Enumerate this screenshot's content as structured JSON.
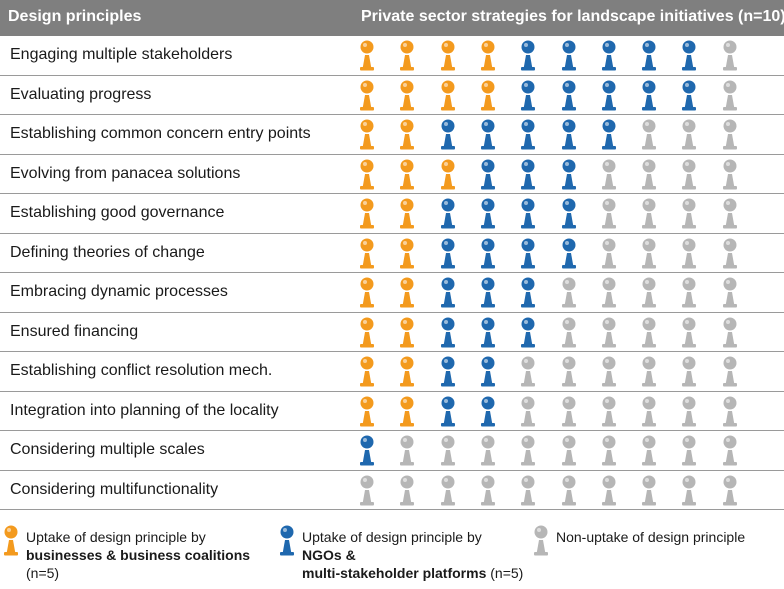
{
  "header": {
    "left": "Design principles",
    "right": "Private sector strategies for landscape initiatives (n=10)"
  },
  "colors": {
    "business": "#f39a1e",
    "ngo": "#1f68ae",
    "none": "#b6b6b6"
  },
  "chart_data": {
    "type": "table",
    "title": "Private sector strategies for landscape initiatives (n=10)",
    "row_header": "Design principles",
    "columns": 10,
    "legend": [
      {
        "key": "business",
        "line1": "Uptake of design principle by",
        "bold": "businesses & business coalitions",
        "note": "(n=5)"
      },
      {
        "key": "ngo",
        "line1": "Uptake of design principle by",
        "bold": "NGOs & multi-stakeholder platforms",
        "note": "(n=5)"
      },
      {
        "key": "none",
        "line1": "Non-uptake of design principle",
        "bold": "",
        "note": ""
      }
    ],
    "rows": [
      {
        "label": "Engaging multiple stakeholders",
        "business": 4,
        "ngo": 5
      },
      {
        "label": "Evaluating progress",
        "business": 4,
        "ngo": 5
      },
      {
        "label": "Establishing common concern entry points",
        "business": 2,
        "ngo": 5
      },
      {
        "label": "Evolving from panacea solutions",
        "business": 3,
        "ngo": 3
      },
      {
        "label": "Establishing good governance",
        "business": 2,
        "ngo": 4
      },
      {
        "label": "Defining theories of change",
        "business": 2,
        "ngo": 4
      },
      {
        "label": "Embracing dynamic processes",
        "business": 2,
        "ngo": 3
      },
      {
        "label": "Ensured financing",
        "business": 2,
        "ngo": 3
      },
      {
        "label": "Establishing conflict resolution mech.",
        "business": 2,
        "ngo": 2
      },
      {
        "label": "Integration into planning of the locality",
        "business": 2,
        "ngo": 2
      },
      {
        "label": "Considering multiple scales",
        "business": 0,
        "ngo": 1
      },
      {
        "label": "Considering multifunctionality",
        "business": 0,
        "ngo": 0
      }
    ]
  }
}
